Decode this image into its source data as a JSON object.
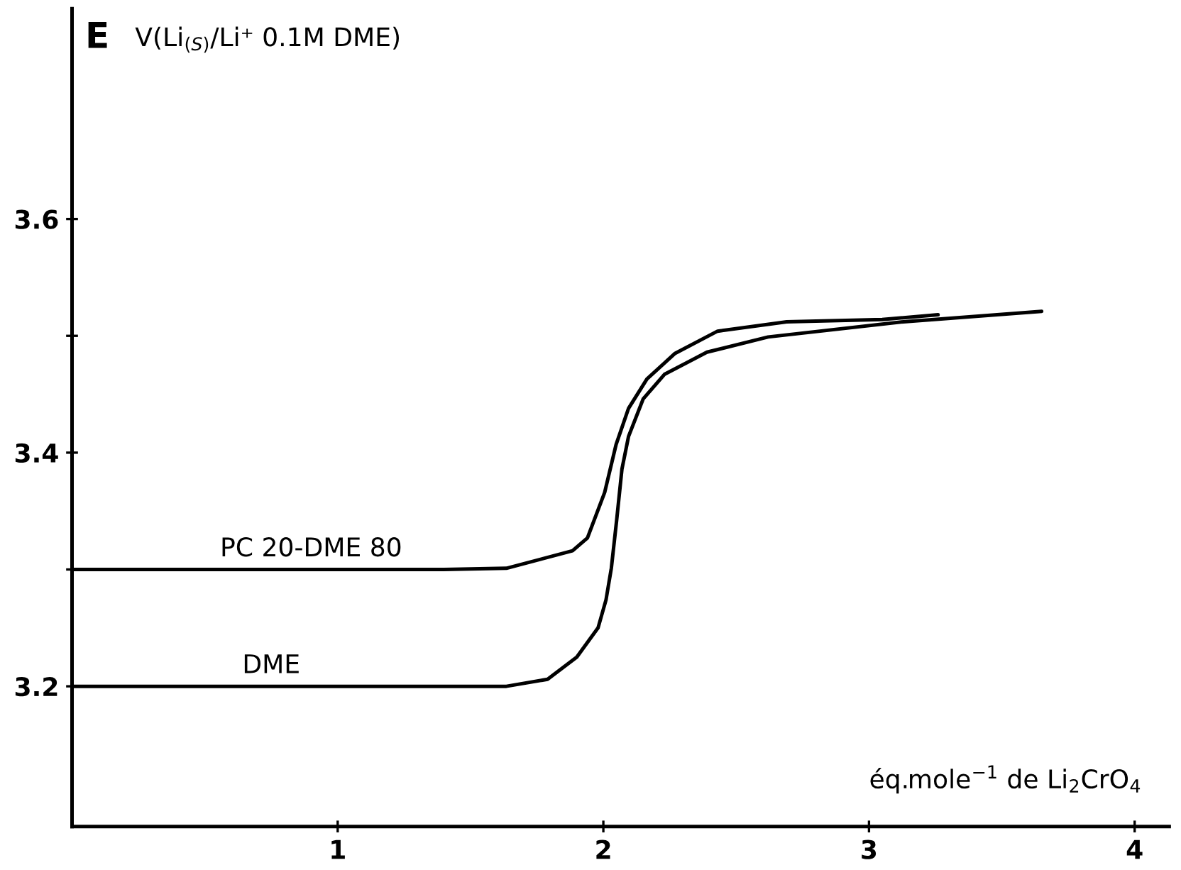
{
  "chart_data": {
    "type": "line",
    "ylabel": "E V(Li$_{(S)}$/Li⁺ 0.1M DME)",
    "xlabel": "éq.mole$^{−1}$ de Li$_{2}$CrO$_{4}$",
    "xlim": [
      0,
      4.13
    ],
    "ylim": [
      3.08,
      3.78
    ],
    "xticks": [
      1,
      2,
      3,
      4
    ],
    "yticks": [
      3.2,
      {
        "value": 3.3,
        "label": null
      },
      3.4,
      {
        "value": 3.5,
        "label": null
      },
      3.6
    ],
    "grid": false,
    "legend": false,
    "marker": "none",
    "line_style": "solid",
    "series": [
      {
        "name": "PC 20-DME 80",
        "color": "#000000",
        "x": [
          0,
          0.9,
          1.4,
          1.635,
          1.884,
          1.94,
          2.005,
          2.048,
          2.095,
          2.164,
          2.27,
          2.43,
          2.69,
          3.05,
          3.26
        ],
        "values": [
          3.3,
          3.3,
          3.3,
          3.301,
          3.316,
          3.327,
          3.366,
          3.407,
          3.438,
          3.463,
          3.485,
          3.504,
          3.512,
          3.514,
          3.518
        ]
      },
      {
        "name": "DME",
        "color": "#000000",
        "x": [
          0,
          0.75,
          1.4,
          1.635,
          1.79,
          1.9,
          1.98,
          2.01,
          2.03,
          2.05,
          2.07,
          2.095,
          2.15,
          2.23,
          2.39,
          2.62,
          3.13,
          3.65
        ],
        "values": [
          3.2,
          3.2,
          3.2,
          3.2,
          3.206,
          3.225,
          3.25,
          3.274,
          3.301,
          3.342,
          3.386,
          3.414,
          3.446,
          3.467,
          3.486,
          3.499,
          3.512,
          3.521
        ]
      }
    ]
  }
}
